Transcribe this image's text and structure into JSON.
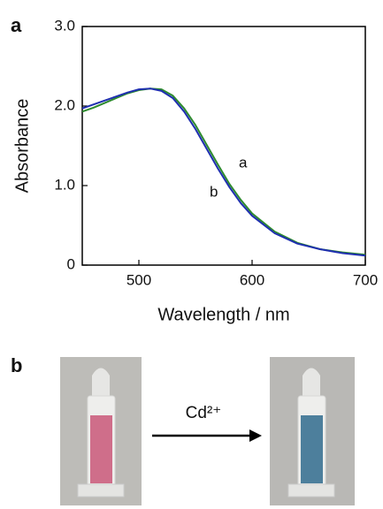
{
  "panel_labels": [
    "a",
    "b"
  ],
  "chart_data": {
    "type": "line",
    "xlabel": "Wavelength / nm",
    "ylabel": "Absorbance",
    "x": [
      450,
      460,
      470,
      480,
      490,
      500,
      510,
      520,
      530,
      540,
      550,
      560,
      570,
      580,
      590,
      600,
      620,
      640,
      660,
      680,
      700
    ],
    "series": [
      {
        "name": "a",
        "color": "#2e8b2e",
        "values": [
          1.93,
          1.98,
          2.04,
          2.1,
          2.16,
          2.2,
          2.22,
          2.21,
          2.13,
          1.97,
          1.76,
          1.51,
          1.26,
          1.02,
          0.82,
          0.65,
          0.42,
          0.28,
          0.2,
          0.16,
          0.13
        ]
      },
      {
        "name": "b",
        "color": "#1f2fb0",
        "values": [
          1.97,
          2.02,
          2.07,
          2.12,
          2.17,
          2.21,
          2.22,
          2.19,
          2.1,
          1.93,
          1.71,
          1.46,
          1.21,
          0.98,
          0.78,
          0.62,
          0.4,
          0.27,
          0.2,
          0.15,
          0.12
        ]
      }
    ],
    "xlim": [
      450,
      700
    ],
    "xticks": [
      500,
      600,
      700
    ],
    "ylim": [
      0,
      3
    ],
    "yticks": [
      0,
      {
        "value": 1,
        "label": "1.0"
      },
      {
        "value": 2,
        "label": "2.0"
      },
      {
        "value": 3,
        "label": "3.0"
      }
    ]
  },
  "photo_panel": {
    "reagent": "Cd²⁺"
  }
}
